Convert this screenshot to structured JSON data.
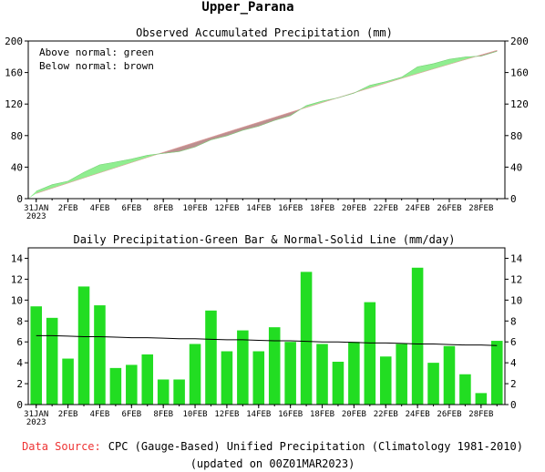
{
  "page_title": "Upper_Parana",
  "footer": {
    "source_label": "Data Source:",
    "source_text": "CPC (Gauge-Based) Unified Precipitation (Climatology 1981-2010)",
    "updated": "(updated on 00Z01MAR2023)"
  },
  "colors": {
    "above": "#90ee90",
    "below": "#bc8f8f",
    "bar": "#22dd22",
    "normal_line": "#000000"
  },
  "chart_data": [
    {
      "type": "area",
      "title": "Observed Accumulated Precipitation (mm)",
      "legend": [
        "Above normal: green",
        "Below normal: brown"
      ],
      "legend_position": "top-left",
      "x": [
        "31JAN",
        "1FEB",
        "2FEB",
        "3FEB",
        "4FEB",
        "5FEB",
        "6FEB",
        "7FEB",
        "8FEB",
        "9FEB",
        "10FEB",
        "11FEB",
        "12FEB",
        "13FEB",
        "14FEB",
        "15FEB",
        "16FEB",
        "17FEB",
        "18FEB",
        "19FEB",
        "20FEB",
        "21FEB",
        "22FEB",
        "23FEB",
        "24FEB",
        "25FEB",
        "26FEB",
        "27FEB",
        "28FEB",
        "1MAR"
      ],
      "x_tick_labels": [
        "31JAN\n2023",
        "2FEB",
        "4FEB",
        "6FEB",
        "8FEB",
        "10FEB",
        "12FEB",
        "14FEB",
        "16FEB",
        "18FEB",
        "20FEB",
        "22FEB",
        "24FEB",
        "26FEB",
        "28FEB"
      ],
      "series": [
        {
          "name": "Observed",
          "values": [
            9.4,
            17.7,
            22.1,
            33.4,
            42.9,
            46.4,
            50.2,
            55.0,
            57.4,
            59.8,
            65.6,
            74.6,
            79.7,
            86.8,
            91.9,
            99.3,
            105.3,
            118.0,
            123.8,
            127.9,
            133.9,
            143.7,
            148.3,
            154.1,
            167.2,
            171.2,
            176.8,
            179.7,
            180.8,
            186.9
          ]
        },
        {
          "name": "Normal",
          "values": [
            6.6,
            13.2,
            19.7,
            26.3,
            32.8,
            39.3,
            45.8,
            52.3,
            58.7,
            65.1,
            71.5,
            77.9,
            84.3,
            90.6,
            96.9,
            103.2,
            109.5,
            115.7,
            121.9,
            128.1,
            134.3,
            140.4,
            146.5,
            152.6,
            158.6,
            164.6,
            170.5,
            176.4,
            182.3,
            188.1
          ]
        }
      ],
      "ylim": [
        0,
        200
      ],
      "yticks": [
        0,
        40,
        80,
        120,
        160,
        200
      ],
      "grid": false
    },
    {
      "type": "bar",
      "title": "Daily Precipitation-Green Bar & Normal-Solid Line (mm/day)",
      "x": [
        "31JAN",
        "1FEB",
        "2FEB",
        "3FEB",
        "4FEB",
        "5FEB",
        "6FEB",
        "7FEB",
        "8FEB",
        "9FEB",
        "10FEB",
        "11FEB",
        "12FEB",
        "13FEB",
        "14FEB",
        "15FEB",
        "16FEB",
        "17FEB",
        "18FEB",
        "19FEB",
        "20FEB",
        "21FEB",
        "22FEB",
        "23FEB",
        "24FEB",
        "25FEB",
        "26FEB",
        "27FEB",
        "28FEB",
        "1MAR"
      ],
      "x_tick_labels": [
        "31JAN\n2023",
        "2FEB",
        "4FEB",
        "6FEB",
        "8FEB",
        "10FEB",
        "12FEB",
        "14FEB",
        "16FEB",
        "18FEB",
        "20FEB",
        "22FEB",
        "24FEB",
        "26FEB",
        "28FEB"
      ],
      "series": [
        {
          "name": "Daily",
          "values": [
            9.4,
            8.3,
            4.4,
            11.3,
            9.5,
            3.5,
            3.8,
            4.8,
            2.4,
            2.4,
            5.8,
            9.0,
            5.1,
            7.1,
            5.1,
            7.4,
            6.0,
            12.7,
            5.8,
            4.1,
            6.0,
            9.8,
            4.6,
            5.8,
            13.1,
            4.0,
            5.6,
            2.9,
            1.1,
            6.1
          ]
        },
        {
          "name": "Normal",
          "values": [
            6.6,
            6.6,
            6.55,
            6.5,
            6.5,
            6.45,
            6.4,
            6.4,
            6.35,
            6.3,
            6.3,
            6.25,
            6.2,
            6.2,
            6.15,
            6.1,
            6.1,
            6.05,
            6.0,
            6.0,
            5.95,
            5.9,
            5.9,
            5.85,
            5.8,
            5.8,
            5.75,
            5.7,
            5.7,
            5.65
          ]
        }
      ],
      "ylim": [
        0,
        15
      ],
      "yticks": [
        0,
        2,
        4,
        6,
        8,
        10,
        12,
        14
      ],
      "grid": false
    }
  ]
}
